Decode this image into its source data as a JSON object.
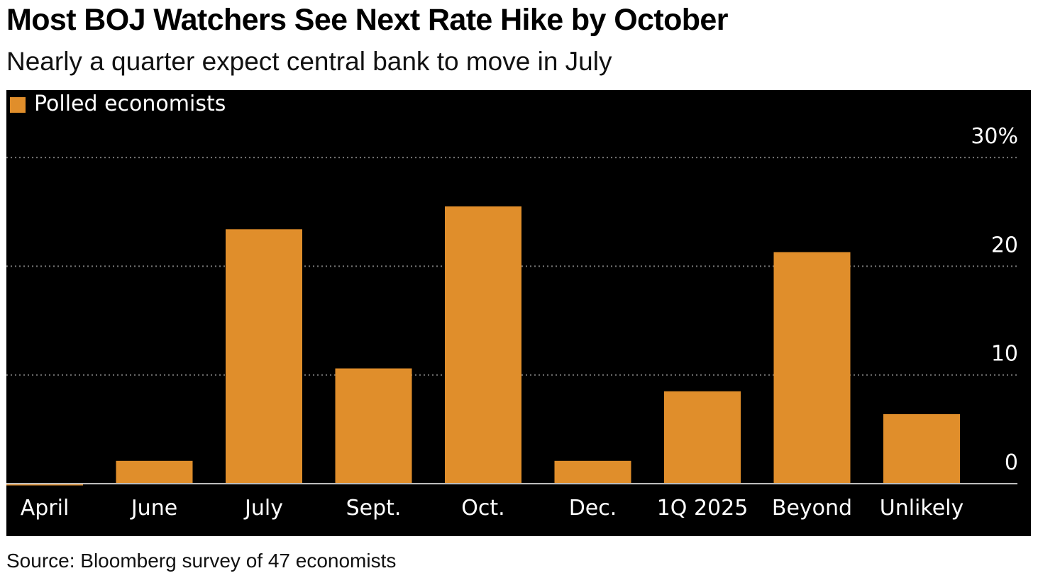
{
  "title": "Most BOJ Watchers See Next Rate Hike by October",
  "subtitle": "Nearly a quarter expect central bank to move in July",
  "source": "Source: Bloomberg survey of 47 economists",
  "colors": {
    "bar": "#e08e2b",
    "background": "#000000",
    "grid": "#777777",
    "text": "#ffffff"
  },
  "chart_data": {
    "type": "bar",
    "categories": [
      "April",
      "June",
      "July",
      "Sept.",
      "Oct.",
      "Dec.",
      "1Q 2025",
      "Beyond",
      "Unlikely"
    ],
    "series": [
      {
        "name": "Polled economists",
        "values": [
          0,
          2.1,
          23.4,
          10.6,
          25.5,
          2.1,
          8.5,
          21.3,
          6.4
        ]
      }
    ],
    "y_ticks": [
      {
        "value": 0,
        "label": "0"
      },
      {
        "value": 10,
        "label": "10"
      },
      {
        "value": 20,
        "label": "20"
      },
      {
        "value": 30,
        "label": "30%"
      }
    ],
    "ylim": [
      0,
      30
    ],
    "grid": true,
    "legend_position": "top-left"
  }
}
